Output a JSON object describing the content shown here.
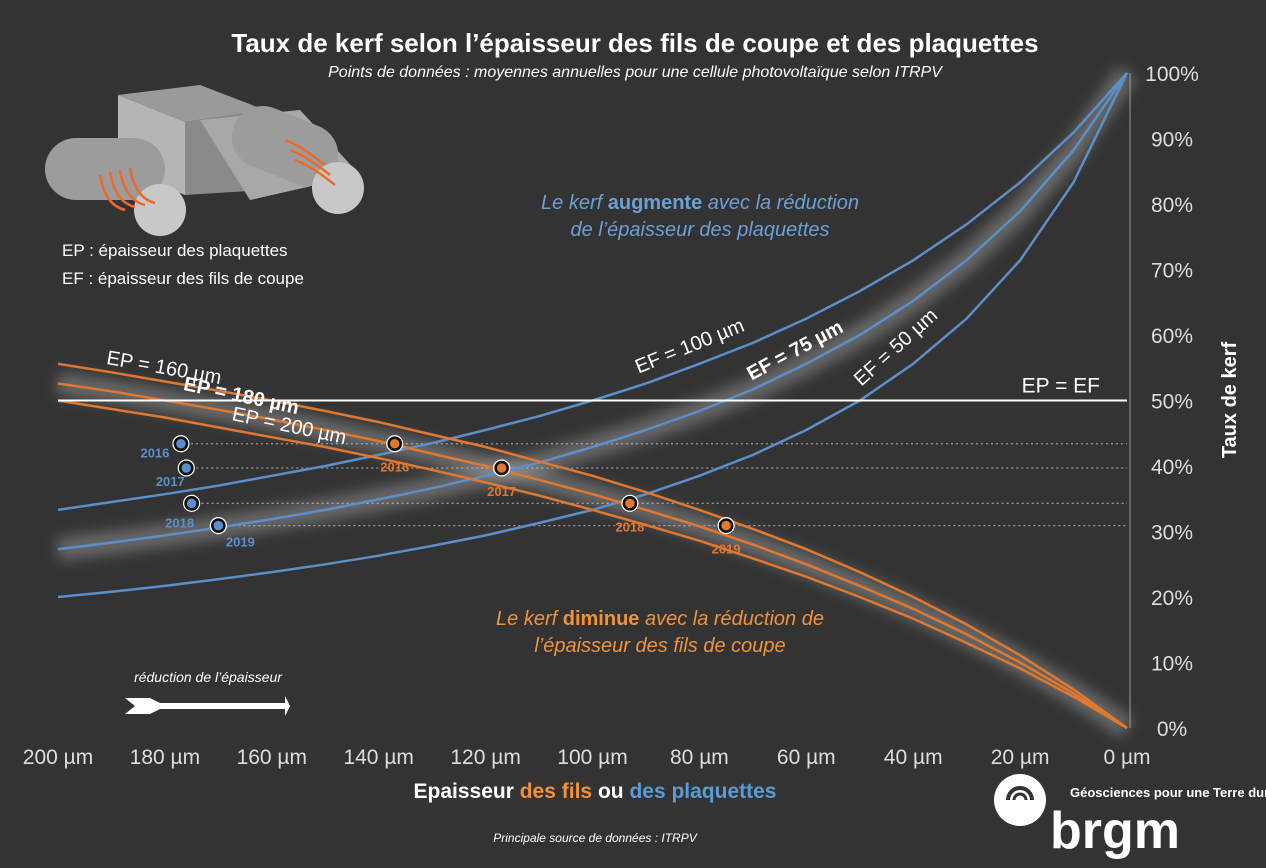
{
  "chart_data": {
    "type": "line",
    "title": "Taux de kerf selon l’épaisseur des fils de coupe et des plaquettes",
    "subtitle": "Points de données : moyennes annuelles pour une cellule photovoltaïque selon ITRPV",
    "ylabel": "Taux de kerf",
    "xlabel_parts": [
      "Epaisseur ",
      "des fils",
      " ou ",
      "des plaquettes"
    ],
    "x": [
      200,
      190,
      180,
      170,
      160,
      150,
      140,
      130,
      120,
      110,
      100,
      90,
      80,
      70,
      60,
      50,
      40,
      30,
      20,
      10,
      0
    ],
    "xlim": [
      200,
      0
    ],
    "ylim": [
      0,
      100
    ],
    "xticks": [
      {
        "value": 200,
        "label": "200 µm"
      },
      {
        "value": 180,
        "label": "180 µm"
      },
      {
        "value": 160,
        "label": "160 µm"
      },
      {
        "value": 140,
        "label": "140 µm"
      },
      {
        "value": 120,
        "label": "120 µm"
      },
      {
        "value": 100,
        "label": "100 µm"
      },
      {
        "value": 80,
        "label": "80 µm"
      },
      {
        "value": 60,
        "label": "60 µm"
      },
      {
        "value": 40,
        "label": "40 µm"
      },
      {
        "value": 20,
        "label": "20 µm"
      },
      {
        "value": 0,
        "label": "0 µm"
      }
    ],
    "yticks": [
      {
        "value": 0,
        "label": "0%"
      },
      {
        "value": 10,
        "label": "10%"
      },
      {
        "value": 20,
        "label": "20%"
      },
      {
        "value": 30,
        "label": "30%"
      },
      {
        "value": 40,
        "label": "40%"
      },
      {
        "value": 50,
        "label": "50%"
      },
      {
        "value": 60,
        "label": "60%"
      },
      {
        "value": 70,
        "label": "70%"
      },
      {
        "value": 80,
        "label": "80%"
      },
      {
        "value": 90,
        "label": "90%"
      },
      {
        "value": 100,
        "label": "100%"
      }
    ],
    "series": [
      {
        "name": "EF = 100 µm",
        "color": "#5b8fc9",
        "highlight": false,
        "values": [
          33.3,
          34.5,
          35.7,
          37.0,
          38.5,
          40.0,
          41.7,
          43.5,
          45.5,
          47.6,
          50.0,
          52.6,
          55.6,
          58.8,
          62.5,
          66.7,
          71.4,
          76.9,
          83.3,
          90.9,
          100
        ]
      },
      {
        "name": "EF = 75 µm",
        "color": "#5b8fc9",
        "highlight": true,
        "values": [
          27.3,
          28.3,
          29.4,
          30.6,
          31.9,
          33.3,
          34.9,
          36.6,
          38.5,
          40.5,
          42.9,
          45.5,
          48.4,
          51.7,
          55.6,
          60.0,
          65.2,
          71.4,
          78.9,
          88.2,
          100
        ]
      },
      {
        "name": "EF = 50 µm",
        "color": "#5b8fc9",
        "highlight": false,
        "values": [
          20.0,
          20.8,
          21.7,
          22.7,
          23.8,
          25.0,
          26.3,
          27.8,
          29.4,
          31.3,
          33.3,
          35.7,
          38.5,
          41.7,
          45.5,
          50.0,
          55.6,
          62.5,
          71.4,
          83.3,
          100
        ]
      },
      {
        "name": "EP = 160 µm",
        "color": "#e0782f",
        "highlight": false,
        "values": [
          55.6,
          54.3,
          52.9,
          51.5,
          50.0,
          48.4,
          46.7,
          44.8,
          42.9,
          40.7,
          38.5,
          36.0,
          33.3,
          30.4,
          27.3,
          23.8,
          20.0,
          15.8,
          11.1,
          5.9,
          0
        ]
      },
      {
        "name": "EP = 180 µm",
        "color": "#e0782f",
        "highlight": true,
        "values": [
          52.6,
          51.4,
          50.0,
          48.6,
          47.1,
          45.5,
          43.8,
          41.9,
          40.0,
          37.9,
          35.7,
          33.3,
          30.8,
          28.0,
          25.0,
          21.7,
          18.2,
          14.3,
          10.0,
          5.3,
          0
        ]
      },
      {
        "name": "EP = 200 µm",
        "color": "#e0782f",
        "highlight": false,
        "values": [
          50.0,
          48.7,
          47.4,
          45.9,
          44.4,
          42.9,
          41.2,
          39.4,
          37.5,
          35.5,
          33.3,
          31.0,
          28.6,
          25.9,
          23.1,
          20.0,
          16.7,
          13.0,
          9.1,
          4.8,
          0
        ]
      }
    ],
    "reference_line": {
      "value": 50,
      "label": "EP = EF",
      "color": "#ffffff"
    },
    "points": [
      {
        "label": "2016",
        "x": 177,
        "y": 43.4,
        "color": "#5b8fc9"
      },
      {
        "label": "2017",
        "x": 176,
        "y": 39.7,
        "color": "#5b8fc9"
      },
      {
        "label": "2018",
        "x": 175,
        "y": 34.3,
        "color": "#5b8fc9"
      },
      {
        "label": "2019",
        "x": 170,
        "y": 30.9,
        "color": "#5b8fc9"
      },
      {
        "label": "2016",
        "x": 137,
        "y": 43.4,
        "color": "#e0782f"
      },
      {
        "label": "2017",
        "x": 117,
        "y": 39.7,
        "color": "#e0782f"
      },
      {
        "label": "2018",
        "x": 93,
        "y": 34.3,
        "color": "#e0782f"
      },
      {
        "label": "2019",
        "x": 75,
        "y": 30.9,
        "color": "#e0782f"
      }
    ],
    "annotations": {
      "blue": [
        [
          "Le kerf ",
          "augmente",
          " avec la réduction"
        ],
        [
          "de l’épaisseur des plaquettes"
        ]
      ],
      "orange": [
        [
          "Le kerf ",
          "diminue",
          " avec la réduction de"
        ],
        [
          "l’épaisseur des fils de coupe"
        ]
      ],
      "legend_ep": "EP : épaisseur des plaquettes",
      "legend_ef": "EF : épaisseur des fils de coupe",
      "arrow": "réduction de l’épaisseur",
      "source": "Principale source de données : ITRPV"
    }
  },
  "logo": {
    "name": "brgm",
    "tagline": "Géosciences pour une Terre durable"
  }
}
